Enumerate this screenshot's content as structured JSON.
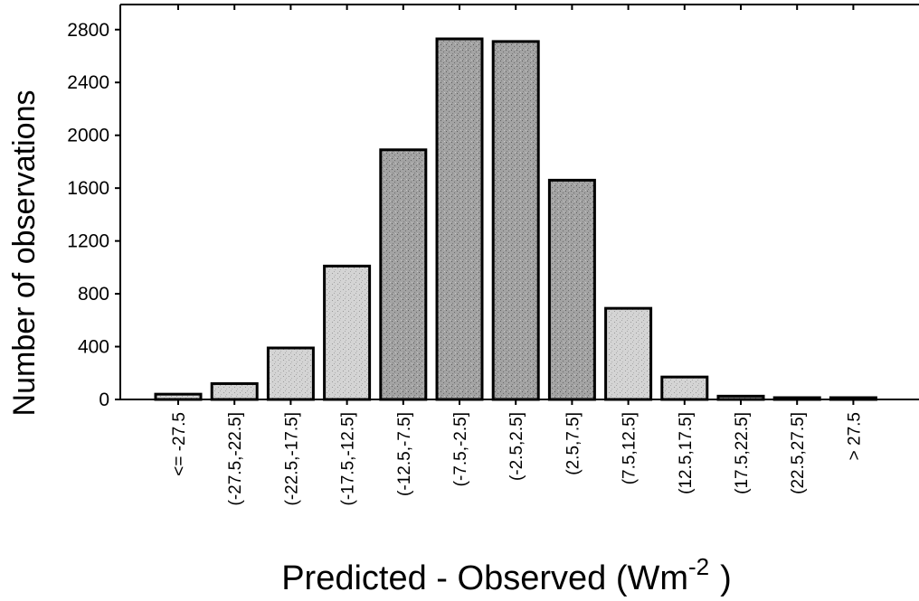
{
  "chart_data": {
    "type": "bar",
    "categories": [
      "<= -27.5",
      "(-27.5,-22.5]",
      "(-22.5,-17.5]",
      "(-17.5,-12.5]",
      "(-12.5,-7.5]",
      "(-7.5,-2.5]",
      "(-2.5,2.5]",
      "(2.5,7.5]",
      "(7.5,12.5]",
      "(12.5,17.5]",
      "(17.5,22.5]",
      "(22.5,27.5]",
      "> 27.5"
    ],
    "values": [
      40,
      120,
      390,
      1010,
      1890,
      2730,
      2710,
      1660,
      690,
      170,
      25,
      10,
      5
    ],
    "title": "",
    "xlabel": "Predicted - Observed (Wm",
    "xlabel_sup": "-2",
    "xlabel_end": ")",
    "ylabel": "Number of observations",
    "ylim": [
      0,
      2990
    ],
    "yticks": [
      "0",
      "400",
      "800",
      "1200",
      "1600",
      "2000",
      "2400",
      "2800"
    ],
    "bar_fill": "#c8c8c8",
    "bar_dark_fill": "#8a8a8a",
    "bar_stroke": "#000000",
    "grid": false,
    "legend": "none"
  }
}
